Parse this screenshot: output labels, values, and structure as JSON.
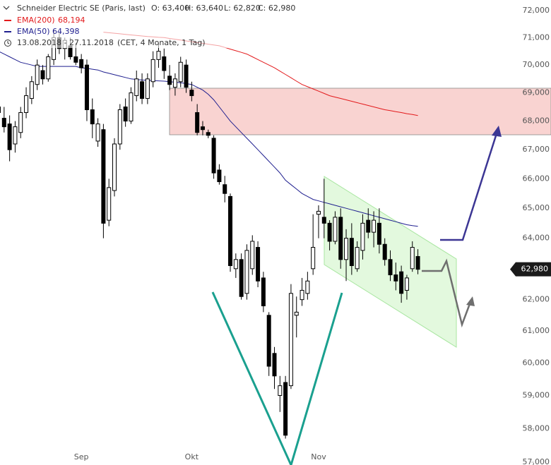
{
  "header": {
    "title": "Schneider Electric SE (Paris, last)",
    "quote": [
      "O: 63,400",
      "H: 63,640",
      "L: 62,820",
      "C: 62,980"
    ],
    "period": "13.08.2018 - 27.11.2018",
    "period_note": "(CET, 4 Monate, 1 Tag)"
  },
  "chart_data": {
    "type": "candlestick",
    "categories": [
      null,
      null,
      null,
      null,
      null,
      null,
      null,
      null,
      null,
      null,
      null,
      null,
      null,
      null,
      null,
      "Sep",
      null,
      null,
      null,
      null,
      null,
      null,
      null,
      null,
      null,
      null,
      null,
      null,
      null,
      null,
      null,
      null,
      null,
      null,
      null,
      "Okt",
      null,
      null,
      null,
      null,
      null,
      null,
      null,
      null,
      null,
      null,
      null,
      null,
      null,
      null,
      null,
      null,
      null,
      null,
      null,
      null,
      null,
      null,
      "Nov",
      null,
      null,
      null,
      null,
      null,
      null,
      null,
      null,
      null,
      null,
      null,
      null,
      null,
      null,
      null,
      null,
      null,
      null
    ],
    "open": [
      68300,
      68100,
      67900,
      67200,
      67600,
      68300,
      68800,
      69300,
      69800,
      69500,
      70200,
      71000,
      70600,
      70700,
      70300,
      70200,
      70000,
      68400,
      67300,
      67700,
      64600,
      65600,
      67200,
      68500,
      68000,
      68900,
      69400,
      68800,
      69400,
      70200,
      70300,
      69600,
      69200,
      69400,
      70000,
      69100,
      68300,
      67800,
      67600,
      67400,
      66300,
      65800,
      65400,
      63000,
      63300,
      62200,
      63000,
      63700,
      62700,
      61500,
      60300,
      59000,
      59400,
      59300,
      61500,
      62000,
      62200,
      63000,
      64800,
      64700,
      64500,
      63900,
      64700,
      63300,
      64000,
      63000,
      63600,
      64600,
      64200,
      64500,
      63800,
      63300,
      62800,
      62900,
      62300,
      63000,
      63400
    ],
    "high": [
      68700,
      68500,
      68200,
      68000,
      68500,
      69200,
      69600,
      70200,
      70000,
      70400,
      71300,
      71200,
      71000,
      71000,
      70800,
      70400,
      70200,
      68800,
      68100,
      67900,
      66000,
      67400,
      68600,
      68800,
      69200,
      69800,
      69700,
      69700,
      70500,
      70800,
      70600,
      70000,
      69700,
      70300,
      70200,
      69400,
      68600,
      68000,
      67700,
      67500,
      66500,
      66100,
      65500,
      63500,
      63500,
      63800,
      64100,
      63900,
      62900,
      61600,
      60500,
      59600,
      59600,
      62500,
      62100,
      62700,
      62900,
      64800,
      65100,
      66000,
      64600,
      64900,
      65000,
      64300,
      64500,
      63900,
      64800,
      65000,
      64900,
      65000,
      64000,
      63600,
      63200,
      63100,
      62800,
      63900,
      63640
    ],
    "low": [
      67900,
      67600,
      66600,
      66900,
      67400,
      68100,
      68600,
      69100,
      69300,
      69400,
      70000,
      70400,
      70200,
      70200,
      70000,
      69700,
      68000,
      67400,
      67100,
      64000,
      64400,
      65400,
      67000,
      67800,
      67900,
      68700,
      68600,
      68600,
      69200,
      69900,
      69500,
      69100,
      68900,
      69200,
      69000,
      68700,
      67500,
      67500,
      67400,
      66000,
      65800,
      65200,
      62900,
      62700,
      62000,
      62000,
      62800,
      62400,
      61600,
      59600,
      59200,
      58500,
      57700,
      59200,
      60800,
      61800,
      62000,
      62800,
      64000,
      64000,
      63600,
      63800,
      63000,
      62600,
      62800,
      62900,
      63300,
      64000,
      63700,
      63500,
      63100,
      62600,
      62300,
      61900,
      62000,
      62900,
      62820
    ],
    "close": [
      68500,
      67800,
      67000,
      67800,
      68300,
      68900,
      69400,
      70000,
      69500,
      70300,
      71000,
      70600,
      70900,
      70300,
      70100,
      69900,
      68400,
      67900,
      67900,
      64500,
      65700,
      67200,
      68400,
      68000,
      69000,
      69500,
      68800,
      69500,
      70200,
      70500,
      69800,
      69300,
      69500,
      70100,
      69200,
      68900,
      67600,
      67700,
      67500,
      66200,
      65900,
      65500,
      63100,
      63300,
      62100,
      63600,
      63900,
      62600,
      61800,
      59900,
      59600,
      59300,
      57800,
      62200,
      61600,
      62300,
      62600,
      63700,
      64900,
      64500,
      63900,
      64700,
      63300,
      64000,
      63100,
      63700,
      64500,
      64200,
      64600,
      63800,
      63300,
      62800,
      62600,
      62200,
      62700,
      63700,
      62980
    ],
    "up_color": "#ffffff",
    "down_color": "#000000",
    "series": [
      {
        "name": "EMA(200)",
        "color": "#e31a1c",
        "last_label": "68,194",
        "values": [
          null,
          null,
          null,
          null,
          null,
          null,
          null,
          null,
          null,
          null,
          null,
          null,
          null,
          null,
          null,
          null,
          null,
          null,
          null,
          71200,
          71180,
          71160,
          71140,
          71120,
          71100,
          71080,
          71060,
          71040,
          71030,
          71010,
          71000,
          70970,
          70940,
          70910,
          70880,
          70850,
          70820,
          70790,
          70760,
          70730,
          70700,
          70640,
          70580,
          70520,
          70460,
          70400,
          70300,
          70200,
          70100,
          70000,
          69900,
          69780,
          69660,
          69540,
          69420,
          69300,
          69220,
          69140,
          69060,
          68980,
          68900,
          68850,
          68800,
          68750,
          68700,
          68650,
          68600,
          68550,
          68500,
          68450,
          68400,
          68370,
          68330,
          68300,
          68260,
          68230,
          68194
        ]
      },
      {
        "name": "EMA(50)",
        "color": "#1f1f8f",
        "last_label": "64,398",
        "values": [
          70500,
          70400,
          70300,
          70200,
          70100,
          70050,
          70000,
          69950,
          69950,
          69950,
          69950,
          69950,
          69950,
          69950,
          69950,
          69900,
          69880,
          69850,
          69820,
          69750,
          69700,
          69650,
          69600,
          69550,
          69500,
          69480,
          69460,
          69450,
          69440,
          69430,
          69420,
          69400,
          69380,
          69360,
          69330,
          69300,
          69200,
          69100,
          68950,
          68750,
          68500,
          68250,
          68000,
          67800,
          67600,
          67400,
          67200,
          67000,
          66800,
          66600,
          66400,
          66200,
          65950,
          65800,
          65650,
          65500,
          65400,
          65300,
          65250,
          65200,
          65150,
          65100,
          65050,
          65000,
          64950,
          64900,
          64850,
          64800,
          64750,
          64700,
          64650,
          64600,
          64550,
          64500,
          64450,
          64420,
          64398
        ]
      }
    ],
    "last_price": {
      "value": 62980,
      "label": "62,980"
    },
    "ylim": [
      57000,
      72000
    ],
    "log": true,
    "grid": false,
    "yticks": [
      {
        "value": 57000,
        "label": "57,000"
      },
      {
        "value": 58000,
        "label": "58,000"
      },
      {
        "value": 59000,
        "label": "59,000"
      },
      {
        "value": 60000,
        "label": "60,000"
      },
      {
        "value": 61000,
        "label": "61,000"
      },
      {
        "value": 62000,
        "label": "62,000"
      },
      {
        "value": 63000,
        "label": "63,000"
      },
      {
        "value": 64000,
        "label": "64,000"
      },
      {
        "value": 65000,
        "label": "65,000"
      },
      {
        "value": 66000,
        "label": "66,000"
      },
      {
        "value": 67000,
        "label": "67,000"
      },
      {
        "value": 68000,
        "label": "68,000"
      },
      {
        "value": 69000,
        "label": "69,000"
      },
      {
        "value": 70000,
        "label": "70,000"
      },
      {
        "value": 71000,
        "label": "71,000"
      },
      {
        "value": 72000,
        "label": "72,000"
      }
    ]
  }
}
